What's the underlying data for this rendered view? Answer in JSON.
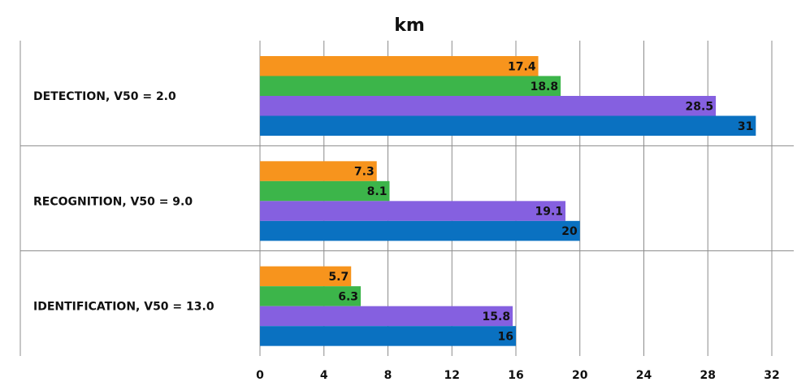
{
  "chart_data": {
    "type": "bar",
    "orientation": "horizontal",
    "title": "km",
    "xlabel": "",
    "ylabel": "",
    "categories": [
      "DETECTION, V50 = 2.0",
      "RECOGNITION, V50 = 9.0",
      "IDENTIFICATION, V50 = 13.0"
    ],
    "series": [
      {
        "color": "#f7941d",
        "values": [
          17.4,
          7.3,
          5.7
        ],
        "labels": [
          "17.4",
          "7.3",
          "5.7"
        ]
      },
      {
        "color": "#3cb54a",
        "values": [
          18.8,
          8.1,
          6.3
        ],
        "labels": [
          "18.8",
          "8.1",
          "6.3"
        ]
      },
      {
        "color": "#8560e0",
        "values": [
          28.5,
          19.1,
          15.8
        ],
        "labels": [
          "28.5",
          "19.1",
          "15.8"
        ]
      },
      {
        "color": "#0a71c1",
        "values": [
          31,
          20,
          16
        ],
        "labels": [
          "31",
          "20",
          "16"
        ]
      }
    ],
    "xlim": [
      0,
      32
    ],
    "xticks": [
      "0",
      "4",
      "8",
      "12",
      "16",
      "20",
      "24",
      "28",
      "32"
    ],
    "grid": "vertical",
    "legend": "none"
  }
}
